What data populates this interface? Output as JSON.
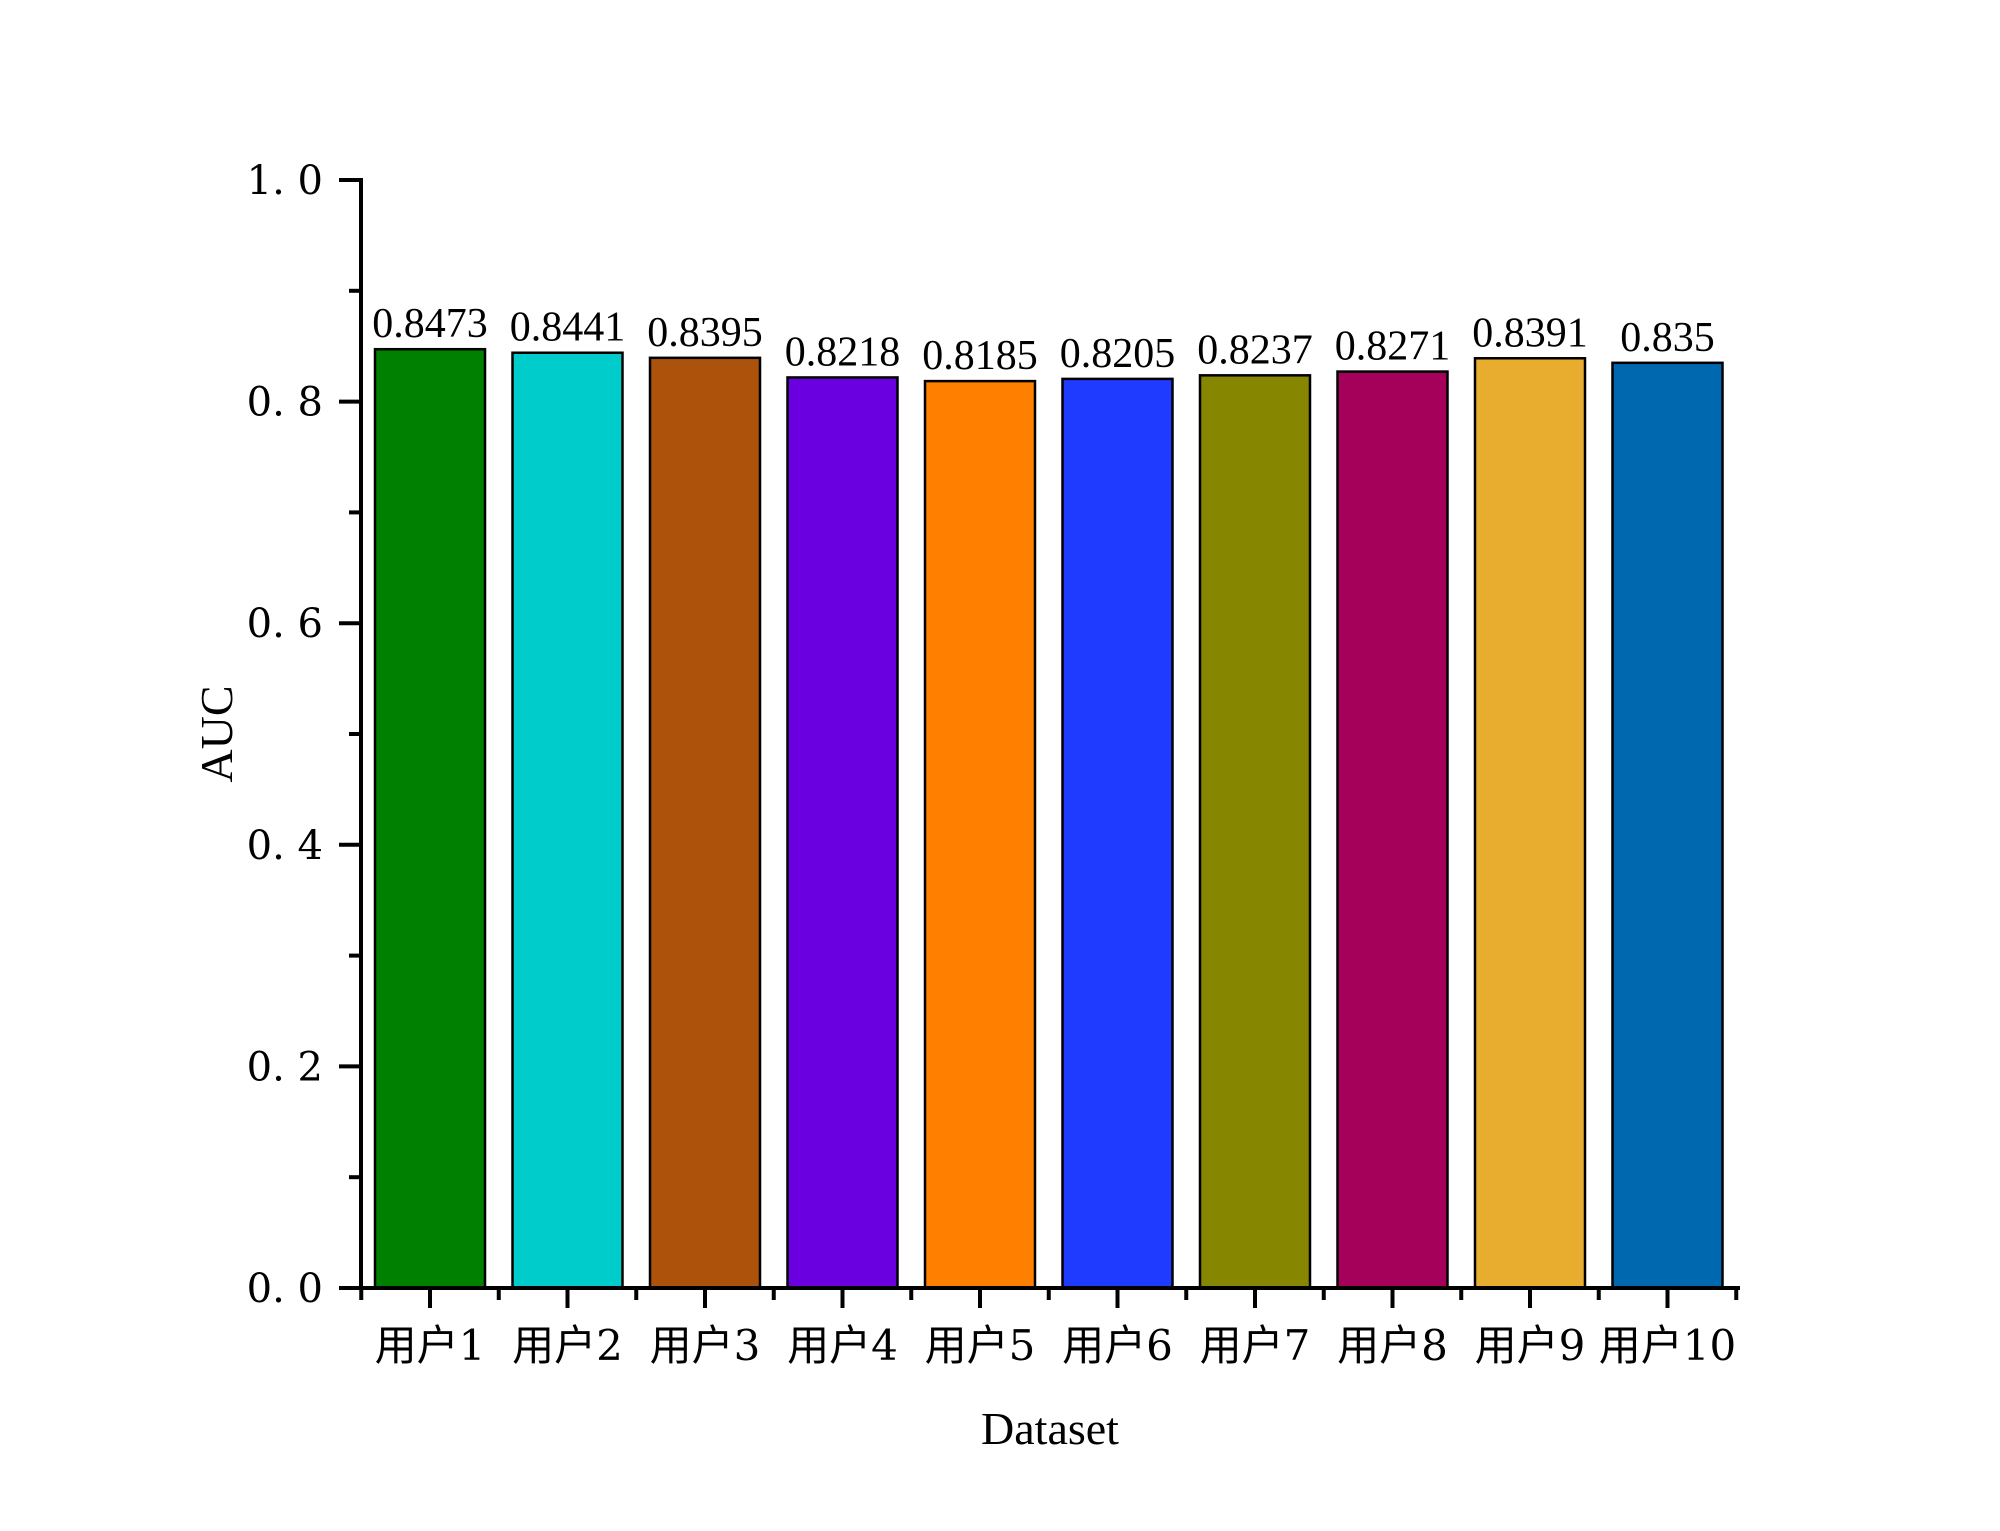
{
  "chart_data": {
    "type": "bar",
    "title": "",
    "xlabel": "Dataset",
    "ylabel": "AUC",
    "ylim": [
      0,
      1.0
    ],
    "yticks": [
      0.0,
      0.2,
      0.4,
      0.6,
      0.8,
      1.0
    ],
    "ytick_labels": [
      "0. 0",
      "0. 2",
      "0. 4",
      "0. 6",
      "0. 8",
      "1. 0"
    ],
    "categories": [
      "用户1",
      "用户2",
      "用户3",
      "用户4",
      "用户5",
      "用户6",
      "用户7",
      "用户8",
      "用户9",
      "用户10"
    ],
    "values": [
      0.8473,
      0.8441,
      0.8395,
      0.8218,
      0.8185,
      0.8205,
      0.8237,
      0.8271,
      0.8391,
      0.835
    ],
    "value_labels": [
      "0.8473",
      "0.8441",
      "0.8395",
      "0.8218",
      "0.8185",
      "0.8205",
      "0.8237",
      "0.8271",
      "0.8391",
      "0.835"
    ],
    "colors": [
      "#008000",
      "#00CCCC",
      "#AD520B",
      "#6A00E0",
      "#FF8000",
      "#1F3BFF",
      "#868600",
      "#A5005A",
      "#E8AD2F",
      "#0068AF"
    ],
    "grid": false,
    "legend": "none"
  }
}
